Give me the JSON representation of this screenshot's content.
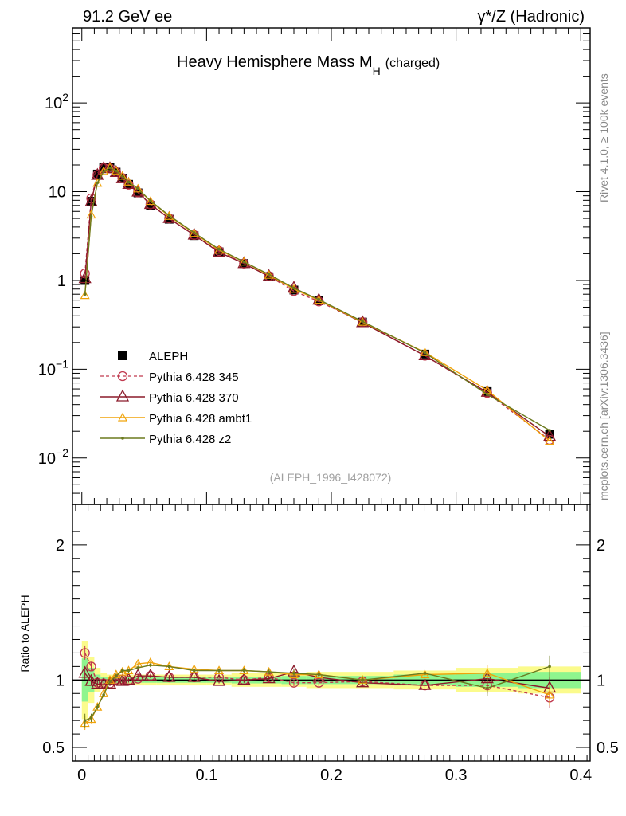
{
  "header": {
    "left": "91.2 GeV ee",
    "right": "γ*/Z (Hadronic)"
  },
  "side_text": {
    "rivet": "Rivet 4.1.0, ≥ 100k events",
    "mcplots": "mcplots.cern.ch [arXiv:1306.3436]"
  },
  "colors": {
    "data": "#000000",
    "p345": "#c0394e",
    "p370": "#8b1a2a",
    "ambt1": "#f0a30a",
    "z2": "#6b7a1e",
    "band_inner": "#8ef58e",
    "band_outer": "#fbfb8c"
  },
  "chart_data": [
    {
      "type": "line",
      "panel": "main",
      "title": "Heavy Hemisphere Mass M",
      "title_sub": "H",
      "title_suffix": "(charged)",
      "xlabel": "",
      "ylabel": "",
      "yscale": "log",
      "xlim": [
        -0.0075,
        0.4075
      ],
      "ylim": [
        0.003,
        700
      ],
      "y_ticks": [
        {
          "value": 0.01,
          "label": "10",
          "exp": "−2"
        },
        {
          "value": 0.1,
          "label": "10",
          "exp": "−1"
        },
        {
          "value": 1,
          "label": "1",
          "exp": ""
        },
        {
          "value": 10,
          "label": "10",
          "exp": ""
        },
        {
          "value": 100,
          "label": "10",
          "exp": "2"
        }
      ],
      "watermark": "(ALEPH_1996_I428072)",
      "legend": [
        {
          "name": "ALEPH",
          "marker": "square",
          "style": "none"
        },
        {
          "name": "Pythia 6.428 345",
          "marker": "circle",
          "style": "dashed"
        },
        {
          "name": "Pythia 6.428 370",
          "marker": "triangle",
          "style": "solid"
        },
        {
          "name": "Pythia 6.428 ambt1",
          "marker": "triangle-small",
          "style": "solid"
        },
        {
          "name": "Pythia 6.428 z2",
          "marker": "dot",
          "style": "solid"
        }
      ],
      "x": [
        0.0025,
        0.0075,
        0.0125,
        0.0175,
        0.0225,
        0.0275,
        0.0325,
        0.0375,
        0.045,
        0.055,
        0.07,
        0.09,
        0.11,
        0.13,
        0.15,
        0.17,
        0.19,
        0.225,
        0.275,
        0.325,
        0.375
      ],
      "data_values": [
        1.0,
        7.8,
        15.8,
        19.0,
        18.8,
        16.6,
        14.2,
        12.1,
        9.7,
        7.0,
        4.9,
        3.2,
        2.1,
        1.55,
        1.1,
        0.78,
        0.59,
        0.34,
        0.148,
        0.056,
        0.0185
      ],
      "series": [
        {
          "name": "Pythia 6.428 345",
          "values": [
            1.2,
            8.4,
            15.5,
            18.5,
            18.3,
            16.7,
            14.3,
            12.0,
            9.8,
            7.2,
            5.0,
            3.25,
            2.15,
            1.55,
            1.12,
            0.76,
            0.58,
            0.34,
            0.142,
            0.054,
            0.016
          ]
        },
        {
          "name": "Pythia 6.428 370",
          "values": [
            1.05,
            7.7,
            15.3,
            18.3,
            18.2,
            16.5,
            14.0,
            12.1,
            9.9,
            7.2,
            5.0,
            3.25,
            2.08,
            1.55,
            1.11,
            0.82,
            0.6,
            0.335,
            0.142,
            0.055,
            0.0175
          ]
        },
        {
          "name": "Pythia 6.428 ambt1",
          "values": [
            0.68,
            5.5,
            12.5,
            17.0,
            18.7,
            17.2,
            15.0,
            12.9,
            10.8,
            7.8,
            5.3,
            3.4,
            2.2,
            1.62,
            1.15,
            0.8,
            0.6,
            0.34,
            0.155,
            0.058,
            0.0155
          ]
        },
        {
          "name": "Pythia 6.428 z2",
          "values": [
            0.7,
            5.3,
            12.6,
            16.9,
            18.6,
            17.1,
            15.0,
            12.8,
            10.8,
            7.9,
            5.4,
            3.45,
            2.25,
            1.62,
            1.17,
            0.82,
            0.61,
            0.345,
            0.153,
            0.052,
            0.0205
          ]
        }
      ]
    },
    {
      "type": "line",
      "panel": "ratio",
      "ylabel": "Ratio to ALEPH",
      "xlabel": "",
      "xlim": [
        -0.0075,
        0.4075
      ],
      "ylim": [
        0.4,
        2.3
      ],
      "y_ticks": [
        {
          "value": 0.5,
          "label": "0.5"
        },
        {
          "value": 1,
          "label": "1"
        },
        {
          "value": 2,
          "label": "2"
        }
      ],
      "x_ticks": [
        {
          "value": 0,
          "label": "0"
        },
        {
          "value": 0.1,
          "label": "0.1"
        },
        {
          "value": 0.2,
          "label": "0.2"
        },
        {
          "value": 0.3,
          "label": "0.3"
        },
        {
          "value": 0.4,
          "label": "0.4"
        }
      ],
      "bins": [
        0,
        0.005,
        0.01,
        0.015,
        0.02,
        0.025,
        0.03,
        0.035,
        0.04,
        0.05,
        0.06,
        0.08,
        0.1,
        0.12,
        0.14,
        0.16,
        0.18,
        0.2,
        0.25,
        0.3,
        0.35,
        0.4
      ],
      "band_inner": [
        0.16,
        0.09,
        0.04,
        0.025,
        0.02,
        0.02,
        0.02,
        0.02,
        0.02,
        0.02,
        0.02,
        0.02,
        0.02,
        0.025,
        0.025,
        0.03,
        0.03,
        0.03,
        0.04,
        0.05,
        0.06
      ],
      "band_outer": [
        0.29,
        0.17,
        0.09,
        0.05,
        0.04,
        0.04,
        0.04,
        0.04,
        0.04,
        0.04,
        0.04,
        0.04,
        0.04,
        0.05,
        0.05,
        0.05,
        0.06,
        0.06,
        0.07,
        0.09,
        0.1
      ],
      "x": [
        0.0025,
        0.0075,
        0.0125,
        0.0175,
        0.0225,
        0.0275,
        0.0325,
        0.0375,
        0.045,
        0.055,
        0.07,
        0.09,
        0.11,
        0.13,
        0.15,
        0.17,
        0.19,
        0.225,
        0.275,
        0.325,
        0.375
      ],
      "series": [
        {
          "name": "Pythia 6.428 345",
          "values": [
            1.2,
            1.1,
            0.98,
            0.975,
            0.975,
            1.005,
            1.005,
            0.995,
            1.01,
            1.03,
            1.02,
            1.02,
            1.02,
            1.0,
            1.02,
            0.98,
            0.98,
            0.99,
            0.96,
            0.96,
            0.87
          ]
        },
        {
          "name": "Pythia 6.428 370",
          "values": [
            1.05,
            0.99,
            0.97,
            0.965,
            0.97,
            0.995,
            0.99,
            1.0,
            1.03,
            1.03,
            1.02,
            1.02,
            0.99,
            1.0,
            1.01,
            1.06,
            1.02,
            0.98,
            0.96,
            1.01,
            0.94
          ]
        },
        {
          "name": "Pythia 6.428 ambt1",
          "values": [
            0.68,
            0.71,
            0.8,
            0.9,
            1.0,
            1.04,
            1.06,
            1.07,
            1.12,
            1.13,
            1.1,
            1.08,
            1.07,
            1.07,
            1.06,
            1.04,
            1.04,
            1.0,
            1.04,
            1.05,
            0.89
          ]
        },
        {
          "name": "Pythia 6.428 z2",
          "values": [
            0.7,
            0.72,
            0.8,
            0.89,
            0.99,
            1.03,
            1.07,
            1.07,
            1.09,
            1.11,
            1.1,
            1.07,
            1.07,
            1.07,
            1.06,
            1.05,
            1.04,
            1.0,
            1.05,
            0.94,
            1.1
          ]
        }
      ],
      "errors": [
        0.05,
        0.03,
        0.02,
        0.015,
        0.015,
        0.015,
        0.015,
        0.015,
        0.015,
        0.015,
        0.015,
        0.015,
        0.015,
        0.02,
        0.02,
        0.025,
        0.025,
        0.025,
        0.035,
        0.06,
        0.08
      ]
    }
  ]
}
